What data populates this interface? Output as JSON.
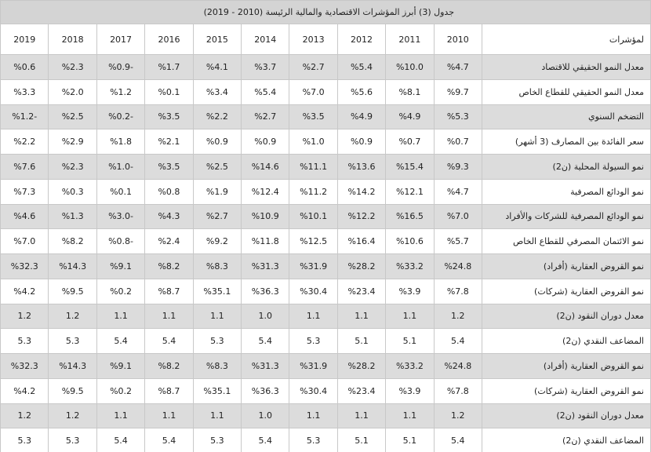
{
  "title": "جدول (3) أبرز المؤشرات الاقتصادية والمالية الرئيسة (2010 - 2019)",
  "header": [
    "لمؤشرات",
    "2010",
    "2011",
    "2012",
    "2013",
    "2014",
    "2015",
    "2016",
    "2017",
    "2018",
    "2019"
  ],
  "rows": [
    [
      "معدل النمو الحقيقي للاقتصاد",
      "%4.7",
      "%10.0",
      "%5.4",
      "%2.7",
      "%3.7",
      "%4.1",
      "%1.7",
      "%0.9-",
      "%2.3",
      "%0.6"
    ],
    [
      "معدل النمو الحقيقي للقطاع الخاص",
      "%9.7",
      "%8.1",
      "%5.6",
      "%7.0",
      "%5.4",
      "%3.4",
      "%0.1",
      "%1.2",
      "%2.0",
      "%3.3"
    ],
    [
      "التضخم السنوي",
      "%5.3",
      "%4.9",
      "%4.9",
      "%3.5",
      "%2.7",
      "%2.2",
      "%3.5",
      "%0.2-",
      "%2.5",
      "%1.2-"
    ],
    [
      "سعر الفائدة بين المصارف (3 أشهر)",
      "%0.7",
      "%0.7",
      "%0.9",
      "%1.0",
      "%0.9",
      "%0.9",
      "%2.1",
      "%1.8",
      "%2.9",
      "%2.2"
    ],
    [
      "نمو السيولة المحلية (ن2)",
      "%9.3",
      "%15.4",
      "%13.6",
      "%11.1",
      "%14.6",
      "%2.5",
      "%3.5",
      "%1.0-",
      "%2.3",
      "%7.6"
    ],
    [
      "نمو الودائع المصرفية",
      "%4.7",
      "%12.1",
      "%14.2",
      "%11.2",
      "%12.4",
      "%1.9",
      "%0.8",
      "%0.1",
      "%0.3",
      "%7.3"
    ],
    [
      "نمو الودائع المصرفية للشركات والأفراد",
      "%7.0",
      "%16.5",
      "%12.2",
      "%10.1",
      "%10.9",
      "%2.7",
      "%4.3",
      "%3.0-",
      "%1.3",
      "%4.6"
    ],
    [
      "نمو الائتمان المصرفي للقطاع الخاص",
      "%5.7",
      "%10.6",
      "%16.4",
      "%12.5",
      "%11.8",
      "%9.2",
      "%2.4",
      "%0.8-",
      "%8.2",
      "%7.0"
    ],
    [
      "نمو القروض العقارية (أفراد)",
      "%24.8",
      "%33.2",
      "%28.2",
      "%31.9",
      "%31.3",
      "%8.3",
      "%8.2",
      "%9.1",
      "%14.3",
      "%32.3"
    ],
    [
      "نمو القروض العقارية (شركات)",
      "%7.8",
      "%3.9",
      "%23.4",
      "%30.4",
      "%36.3",
      "%35.1",
      "%8.7",
      "%0.2",
      "%9.5",
      "%4.2"
    ],
    [
      "معدل دوران النقود (ن2)",
      "1.2",
      "1.1",
      "1.1",
      "1.1",
      "1.0",
      "1.1",
      "1.1",
      "1.1",
      "1.2",
      "1.2"
    ],
    [
      "المضاعف النقدي (ن2)",
      "5.4",
      "5.1",
      "5.1",
      "5.3",
      "5.4",
      "5.3",
      "5.4",
      "5.4",
      "5.3",
      "5.3"
    ],
    [
      "نمو القروض العقارية (أفراد)",
      "%24.8",
      "%33.2",
      "%28.2",
      "%31.9",
      "%31.3",
      "%8.3",
      "%8.2",
      "%9.1",
      "%14.3",
      "%32.3"
    ],
    [
      "نمو القروض العقارية (شركات)",
      "%7.8",
      "%3.9",
      "%23.4",
      "%30.4",
      "%36.3",
      "%35.1",
      "%8.7",
      "%0.2",
      "%9.5",
      "%4.2"
    ],
    [
      "معدل دوران النقود (ن2)",
      "1.2",
      "1.1",
      "1.1",
      "1.1",
      "1.0",
      "1.1",
      "1.1",
      "1.1",
      "1.2",
      "1.2"
    ],
    [
      "المضاعف النقدي (ن2)",
      "5.4",
      "5.1",
      "5.1",
      "5.3",
      "5.4",
      "5.3",
      "5.4",
      "5.4",
      "5.3",
      "5.3"
    ]
  ]
}
